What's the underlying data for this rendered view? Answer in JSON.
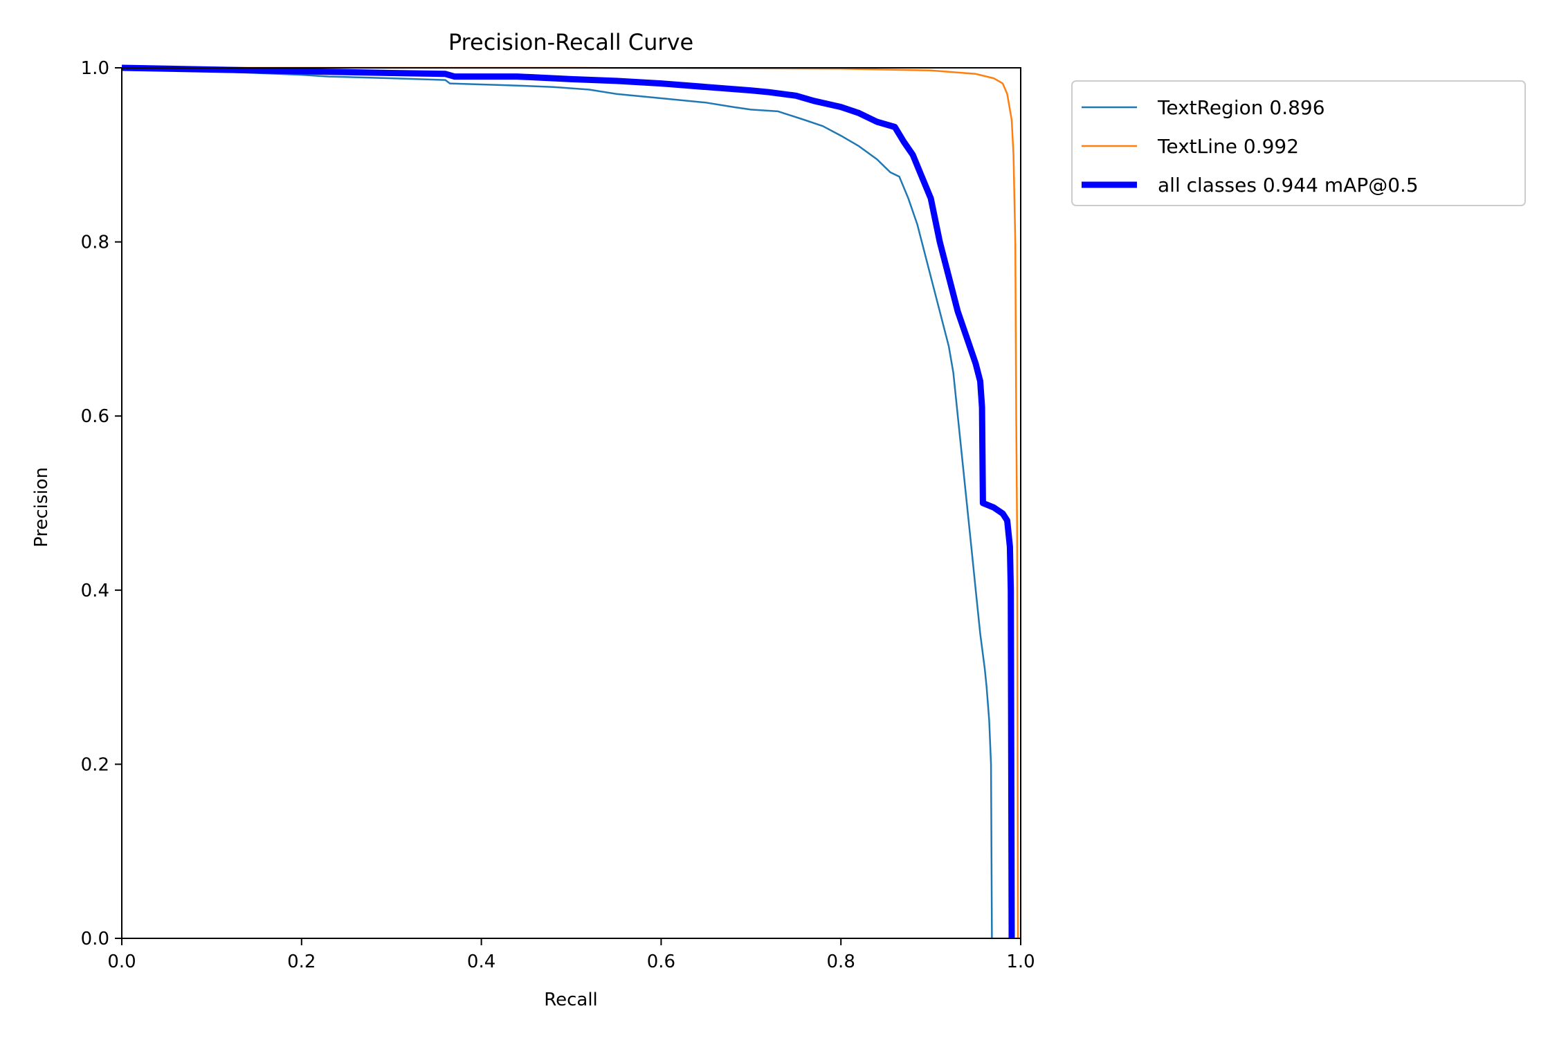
{
  "chart_data": {
    "type": "line",
    "title": "Precision-Recall Curve",
    "xlabel": "Recall",
    "ylabel": "Precision",
    "xlim": [
      0,
      1
    ],
    "ylim": [
      0,
      1
    ],
    "grid": false,
    "legend_position": "outside-right",
    "xticks": [
      "0.0",
      "0.2",
      "0.4",
      "0.6",
      "0.8",
      "1.0"
    ],
    "yticks": [
      "0.0",
      "0.2",
      "0.4",
      "0.6",
      "0.8",
      "1.0"
    ],
    "series": [
      {
        "name": "TextRegion 0.896",
        "color": "#1f77b4",
        "style": "thin",
        "points": [
          [
            0.0,
            1.0
          ],
          [
            0.05,
            0.998
          ],
          [
            0.1,
            0.996
          ],
          [
            0.15,
            0.994
          ],
          [
            0.2,
            0.992
          ],
          [
            0.23,
            0.99
          ],
          [
            0.3,
            0.988
          ],
          [
            0.36,
            0.986
          ],
          [
            0.365,
            0.982
          ],
          [
            0.43,
            0.98
          ],
          [
            0.48,
            0.978
          ],
          [
            0.52,
            0.975
          ],
          [
            0.55,
            0.97
          ],
          [
            0.6,
            0.965
          ],
          [
            0.65,
            0.96
          ],
          [
            0.68,
            0.955
          ],
          [
            0.7,
            0.952
          ],
          [
            0.73,
            0.95
          ],
          [
            0.76,
            0.94
          ],
          [
            0.78,
            0.933
          ],
          [
            0.8,
            0.922
          ],
          [
            0.82,
            0.91
          ],
          [
            0.84,
            0.895
          ],
          [
            0.855,
            0.88
          ],
          [
            0.865,
            0.875
          ],
          [
            0.875,
            0.85
          ],
          [
            0.885,
            0.82
          ],
          [
            0.89,
            0.8
          ],
          [
            0.9,
            0.76
          ],
          [
            0.91,
            0.72
          ],
          [
            0.92,
            0.68
          ],
          [
            0.925,
            0.65
          ],
          [
            0.93,
            0.6
          ],
          [
            0.935,
            0.55
          ],
          [
            0.94,
            0.5
          ],
          [
            0.945,
            0.45
          ],
          [
            0.95,
            0.4
          ],
          [
            0.955,
            0.35
          ],
          [
            0.96,
            0.31
          ],
          [
            0.962,
            0.29
          ],
          [
            0.965,
            0.25
          ],
          [
            0.967,
            0.2
          ],
          [
            0.968,
            0.0
          ]
        ]
      },
      {
        "name": "TextLine 0.992",
        "color": "#ff7f0e",
        "style": "thin",
        "points": [
          [
            0.0,
            1.0
          ],
          [
            0.5,
            1.0
          ],
          [
            0.8,
            0.999
          ],
          [
            0.9,
            0.997
          ],
          [
            0.95,
            0.993
          ],
          [
            0.97,
            0.988
          ],
          [
            0.98,
            0.982
          ],
          [
            0.985,
            0.97
          ],
          [
            0.99,
            0.94
          ],
          [
            0.992,
            0.9
          ],
          [
            0.994,
            0.8
          ],
          [
            0.995,
            0.6
          ],
          [
            0.996,
            0.47
          ],
          [
            0.997,
            0.0
          ]
        ]
      },
      {
        "name": "all classes 0.944 mAP@0.5",
        "color": "#0000ff",
        "style": "thick",
        "points": [
          [
            0.0,
            1.0
          ],
          [
            0.1,
            0.998
          ],
          [
            0.2,
            0.996
          ],
          [
            0.3,
            0.994
          ],
          [
            0.36,
            0.993
          ],
          [
            0.37,
            0.99
          ],
          [
            0.44,
            0.99
          ],
          [
            0.5,
            0.987
          ],
          [
            0.55,
            0.985
          ],
          [
            0.6,
            0.982
          ],
          [
            0.65,
            0.978
          ],
          [
            0.7,
            0.974
          ],
          [
            0.72,
            0.972
          ],
          [
            0.75,
            0.968
          ],
          [
            0.77,
            0.962
          ],
          [
            0.8,
            0.955
          ],
          [
            0.82,
            0.948
          ],
          [
            0.84,
            0.938
          ],
          [
            0.86,
            0.932
          ],
          [
            0.87,
            0.915
          ],
          [
            0.88,
            0.9
          ],
          [
            0.89,
            0.875
          ],
          [
            0.9,
            0.85
          ],
          [
            0.905,
            0.825
          ],
          [
            0.91,
            0.8
          ],
          [
            0.92,
            0.76
          ],
          [
            0.93,
            0.72
          ],
          [
            0.94,
            0.69
          ],
          [
            0.95,
            0.66
          ],
          [
            0.955,
            0.64
          ],
          [
            0.957,
            0.61
          ],
          [
            0.958,
            0.5
          ],
          [
            0.97,
            0.495
          ],
          [
            0.98,
            0.488
          ],
          [
            0.985,
            0.48
          ],
          [
            0.988,
            0.45
          ],
          [
            0.989,
            0.4
          ],
          [
            0.99,
            0.0
          ]
        ]
      }
    ]
  }
}
